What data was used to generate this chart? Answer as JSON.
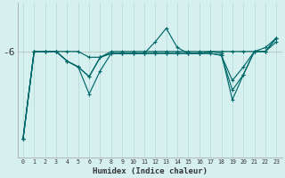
{
  "xlabel": "Humidex (Indice chaleur)",
  "bg_color": "#d6f0f0",
  "grid_color": "#c0dede",
  "line_color": "#006868",
  "x_values": [
    0,
    1,
    2,
    3,
    4,
    5,
    6,
    7,
    8,
    9,
    10,
    11,
    12,
    13,
    14,
    15,
    16,
    17,
    18,
    19,
    20,
    21,
    22,
    23
  ],
  "ytick_labels": [
    "-6"
  ],
  "ytick_values": [
    -6
  ],
  "ylim": [
    -11.5,
    -3.5
  ],
  "series": [
    [
      -10.5,
      -6,
      -6,
      -6,
      -6,
      -6,
      -6.3,
      -6.3,
      -6,
      -6,
      -6,
      -6,
      -6,
      -6,
      -6,
      -6,
      -6,
      -6,
      -6,
      -6,
      -6,
      -6,
      -6,
      -5.5
    ],
    [
      -10.5,
      -6,
      -6,
      -6,
      -6.5,
      -6.8,
      -7.3,
      -6.3,
      -6.1,
      -6.1,
      -6.1,
      -6.1,
      -6.1,
      -6.1,
      -6.1,
      -6.1,
      -6.1,
      -6.1,
      -6.2,
      -7.5,
      -6.8,
      -6,
      -6,
      -5.3
    ],
    [
      -10.5,
      -6,
      -6,
      -6,
      -6.5,
      -6.8,
      -7.3,
      -6.3,
      -6.1,
      -6.1,
      -6.1,
      -6.1,
      -5.5,
      -4.8,
      -5.8,
      -6.1,
      -6.1,
      -6.1,
      -6.2,
      -8.0,
      -7.2,
      -6,
      -6,
      -5.3
    ],
    [
      -10.5,
      -6,
      -6,
      -6,
      -6.5,
      -6.8,
      -8.2,
      -7.0,
      -6.1,
      -6.1,
      -6.1,
      -6.1,
      -6.1,
      -6.1,
      -6.1,
      -6.1,
      -6.1,
      -6.0,
      -6.1,
      -8.5,
      -7.2,
      -6,
      -5.8,
      -5.3
    ]
  ]
}
